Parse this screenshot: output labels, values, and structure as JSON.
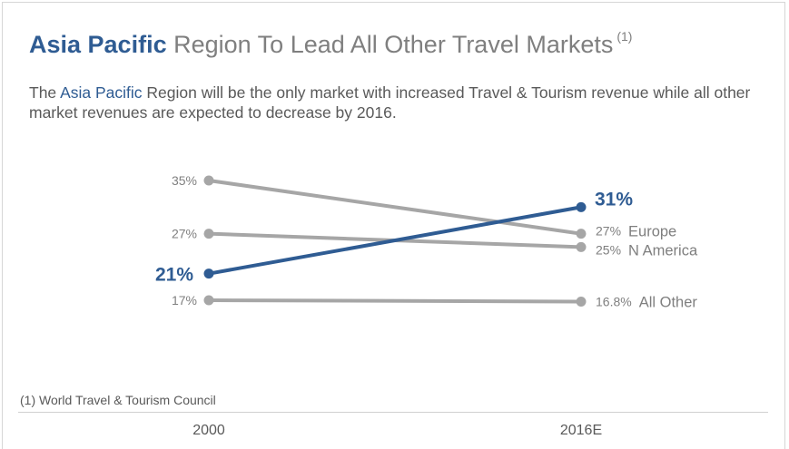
{
  "header": {
    "title_accent": "Asia Pacific",
    "title_rest": "Region To Lead All Other Travel Markets",
    "title_note": "(1)",
    "subtitle_pre": "The ",
    "subtitle_accent": "Asia Pacific",
    "subtitle_post": " Region will be the only market with increased Travel & Tourism revenue while all other market revenues are expected to decrease by 2016."
  },
  "footnote": "(1) World Travel & Tourism Council",
  "colors": {
    "highlight": "#2f5c93",
    "muted": "#a6a6a6",
    "label": "#7f7f7f",
    "text": "#595959"
  },
  "chart_data": {
    "type": "line",
    "categories": [
      "2000",
      "2016E"
    ],
    "ylim": [
      15,
      37
    ],
    "grid": false,
    "series": [
      {
        "name": "Europe",
        "values": [
          35,
          27
        ],
        "start_label": "35%",
        "end_label": "27%",
        "highlight": false
      },
      {
        "name": "N America",
        "values": [
          27,
          25
        ],
        "start_label": "27%",
        "end_label": "25%",
        "highlight": false
      },
      {
        "name": "",
        "values": [
          21,
          31
        ],
        "start_label": "21%",
        "end_label": "31%",
        "highlight": true
      },
      {
        "name": "All Other",
        "values": [
          17,
          16.8
        ],
        "start_label": "17%",
        "end_label": "16.8%",
        "highlight": false
      }
    ]
  }
}
